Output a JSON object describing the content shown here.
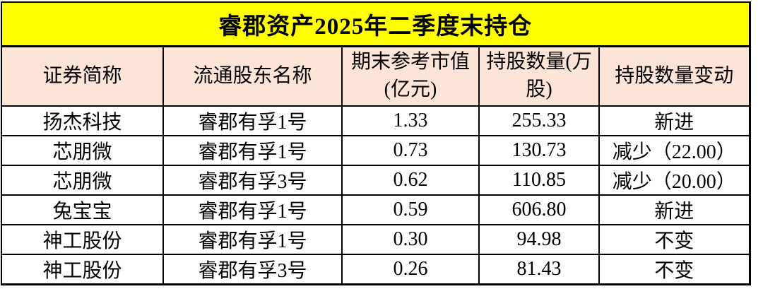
{
  "title": "睿郡资产2025年二季度末持仓",
  "chart_data": {
    "type": "table",
    "title": "睿郡资产2025年二季度末持仓",
    "columns": [
      "证券简称",
      "流通股东名称",
      "期末参考市值(亿元)",
      "持股数量(万股)",
      "持股数量变动"
    ],
    "headers_display": [
      "证券简称",
      "流通股东名称",
      "期末参考市值\n(亿元)",
      "持股数量(万\n股)",
      "持股数量变动"
    ],
    "rows": [
      [
        "扬杰科技",
        "睿郡有孚1号",
        "1.33",
        "255.33",
        "新进"
      ],
      [
        "芯朋微",
        "睿郡有孚1号",
        "0.73",
        "130.73",
        "减少（22.00）"
      ],
      [
        "芯朋微",
        "睿郡有孚3号",
        "0.62",
        "110.85",
        "减少（20.00）"
      ],
      [
        "兔宝宝",
        "睿郡有孚1号",
        "0.59",
        "606.80",
        "新进"
      ],
      [
        "神工股份",
        "睿郡有孚1号",
        "0.30",
        "94.98",
        "不变"
      ],
      [
        "神工股份",
        "睿郡有孚3号",
        "0.26",
        "81.43",
        "不变"
      ]
    ]
  },
  "colors": {
    "title_bg": "#FFFF00",
    "header_bg": "#FCE4D6",
    "row_bg": "#FFFFFF",
    "border": "#000000",
    "text": "#000000"
  }
}
